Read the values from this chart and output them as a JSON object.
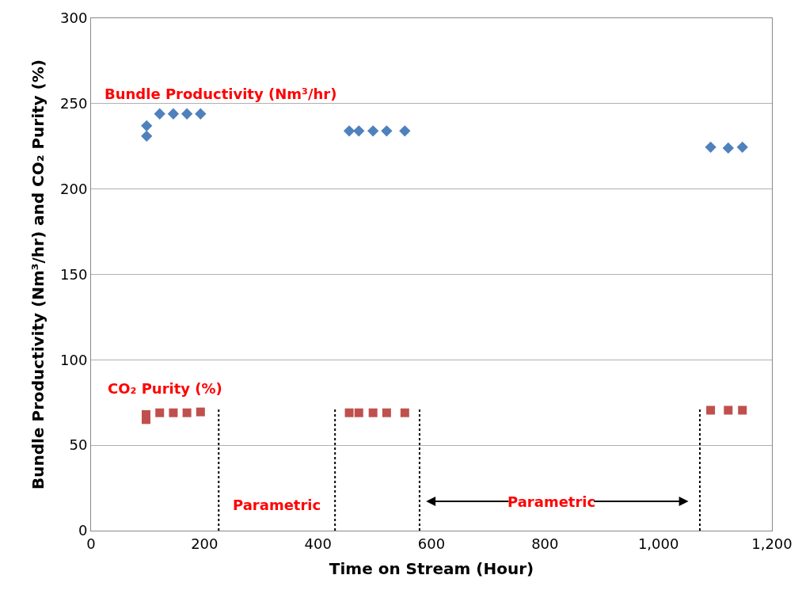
{
  "chart_data": {
    "type": "scatter",
    "xlabel": "Time on Stream (Hour)",
    "ylabel": "Bundle Productivity (Nm³/hr) and CO₂ Purity (%)",
    "xlim": [
      0,
      1200
    ],
    "xticks": [
      0,
      200,
      400,
      {
        "value": 600,
        "label": "600"
      },
      800,
      {
        "value": 1000,
        "label": "1,000"
      },
      {
        "value": 1200,
        "label": "1,200"
      }
    ],
    "ylim": [
      0,
      300
    ],
    "yticks": [
      0,
      50,
      100,
      150,
      200,
      250,
      300
    ],
    "grid": "y",
    "series": [
      {
        "color": "#4f81bd",
        "marker": "diamond",
        "x": [
          98,
          98,
          121,
          145,
          169,
          193,
          455,
          472,
          497,
          521,
          553,
          1092,
          1123,
          1148
        ],
        "values": [
          237,
          231,
          244,
          244,
          244,
          244,
          234,
          234,
          234,
          234,
          234,
          224.5,
          224,
          224.5
        ]
      },
      {
        "color": "#c0504d",
        "marker": "square",
        "x": [
          97,
          97,
          121,
          145,
          169,
          193,
          455,
          472,
          497,
          521,
          553,
          1092,
          1123,
          1148
        ],
        "values": [
          65,
          68,
          69,
          69,
          69,
          69.5,
          69,
          69,
          69,
          69,
          69,
          70.5,
          70.5,
          70.5
        ]
      },
      {
        "type": "line",
        "color": "#000000",
        "line_style": "dotted",
        "marker": "none",
        "x": [
          225,
          225
        ],
        "values": [
          0,
          72
        ]
      },
      {
        "type": "line",
        "color": "#000000",
        "line_style": "dotted",
        "marker": "none",
        "x": [
          430,
          430
        ],
        "values": [
          0,
          72
        ]
      },
      {
        "type": "line",
        "color": "#000000",
        "line_style": "dotted",
        "marker": "none",
        "x": [
          579,
          579
        ],
        "values": [
          0,
          72
        ]
      },
      {
        "type": "line",
        "color": "#000000",
        "line_style": "dotted",
        "marker": "none",
        "x": [
          1073,
          1073
        ],
        "values": [
          0,
          72
        ]
      }
    ],
    "annotations": [
      "Bundle Productivity (Nm³/hr)",
      "CO₂ Purity (%)",
      "Parametric",
      "Parametric"
    ]
  }
}
